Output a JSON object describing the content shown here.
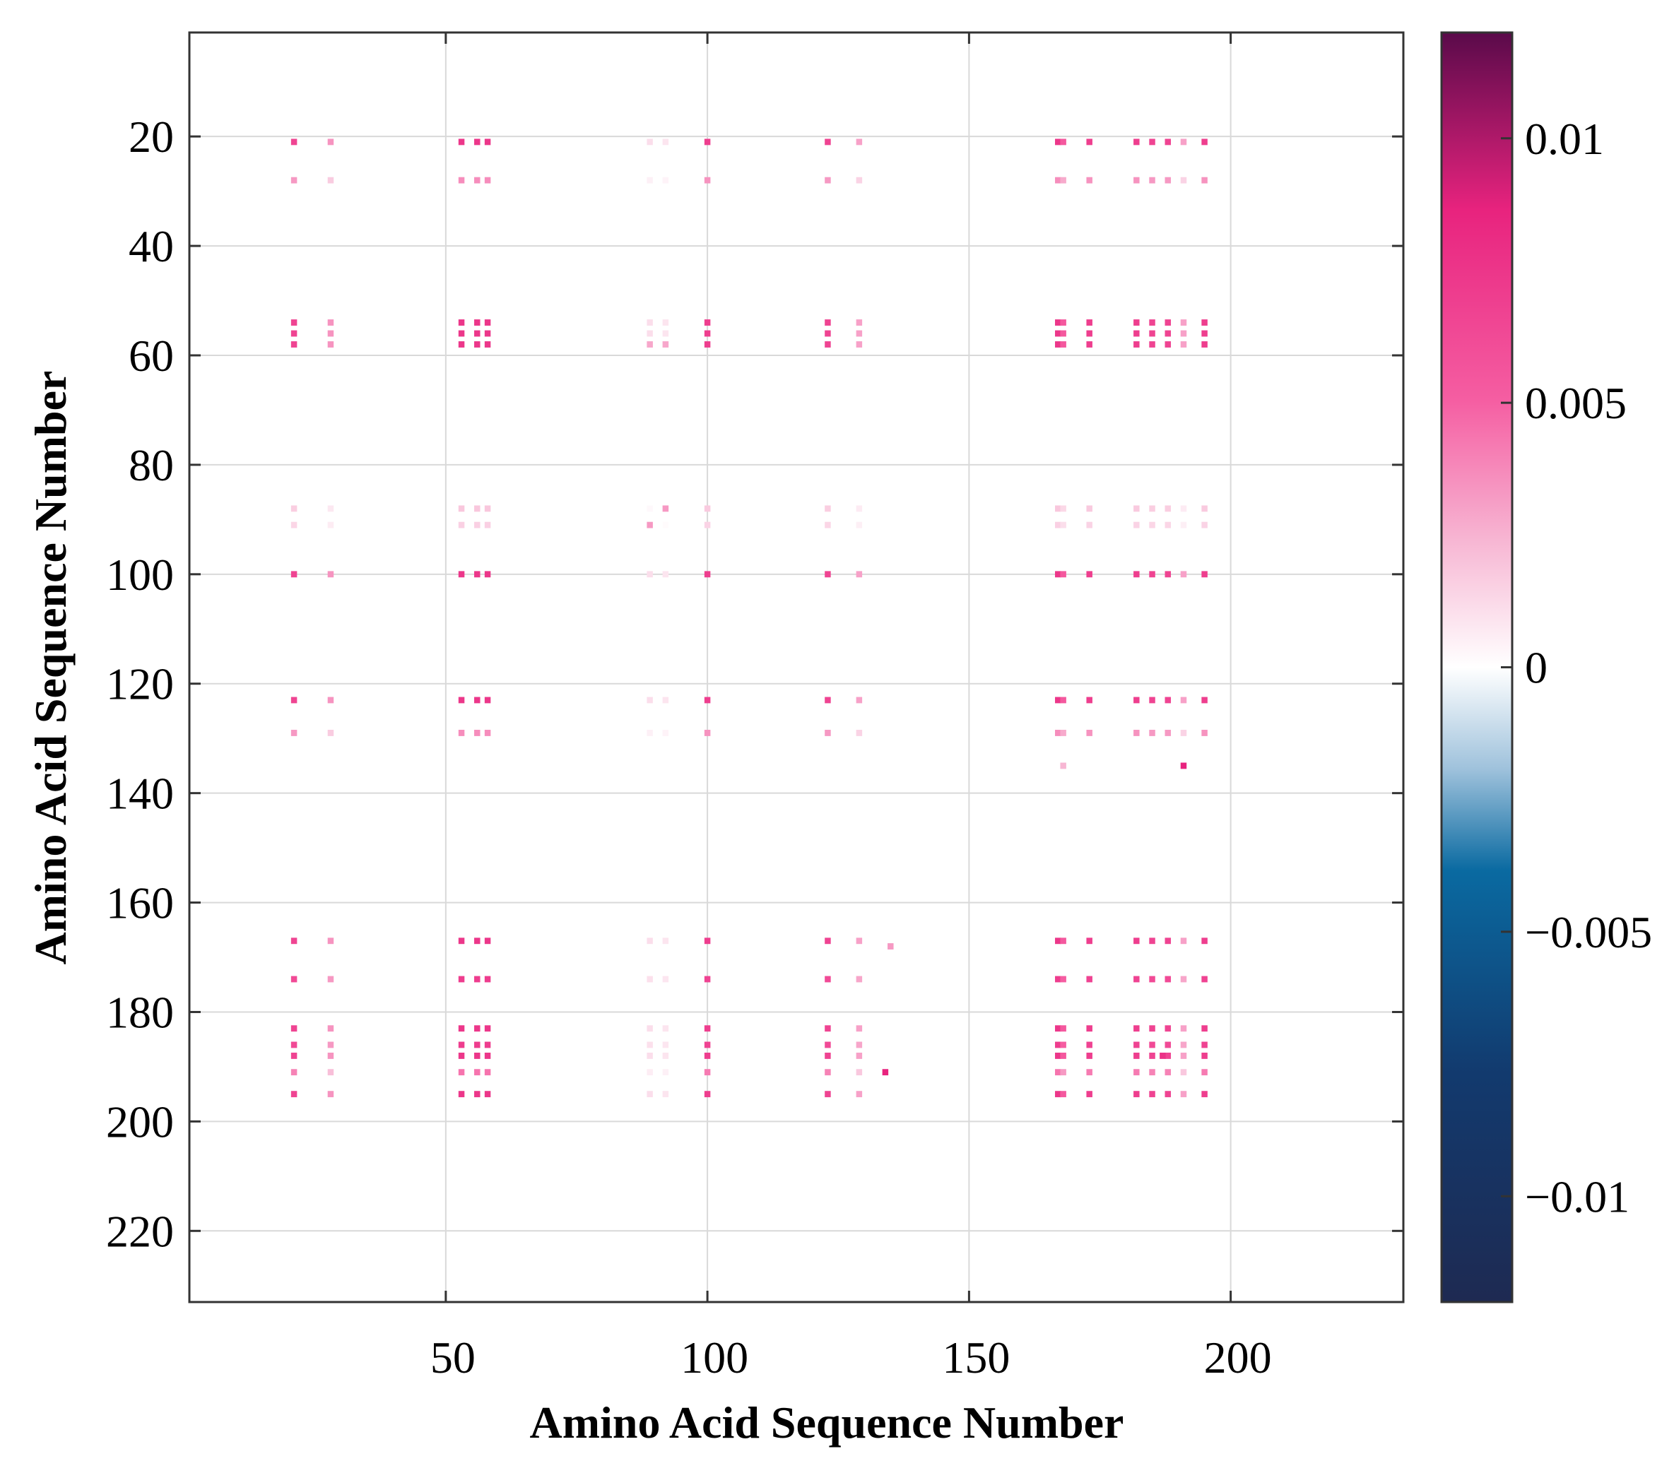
{
  "chart_data": {
    "type": "heatmap",
    "title": "",
    "xlabel": "Amino Acid Sequence Number",
    "ylabel": "Amino Acid Sequence Number",
    "xlim": [
      1,
      233
    ],
    "ylim": [
      1,
      233
    ],
    "y_reversed": true,
    "grid": true,
    "x_ticks": [
      50,
      100,
      150,
      200
    ],
    "x_tick_labels": [
      "50",
      "100",
      "150",
      "200"
    ],
    "y_ticks": [
      20,
      40,
      60,
      80,
      100,
      120,
      140,
      160,
      180,
      200,
      220
    ],
    "y_tick_labels": [
      "20",
      "40",
      "60",
      "80",
      "100",
      "120",
      "140",
      "160",
      "180",
      "200",
      "220"
    ],
    "colorbar": {
      "range": [
        -0.012,
        0.012
      ],
      "ticks": [
        0.01,
        0.005,
        0,
        -0.005,
        -0.01
      ],
      "tick_labels": [
        "0.01",
        "0.005",
        "0",
        "−0.005",
        "−0.01"
      ],
      "colors": {
        "top": "#5a0a4a",
        "strong_pink": "#e8237e",
        "pink": "#f55ea2",
        "light_pink": "#f7b6d3",
        "zero": "#ffffff",
        "light_blue": "#9fc2dc",
        "blue": "#0a6aa1",
        "dark_blue": "#123a6e",
        "bottom": "#1e2a52"
      }
    },
    "columns": [
      21,
      28,
      53,
      56,
      58,
      89,
      92,
      100,
      123,
      129,
      167,
      168,
      173,
      182,
      185,
      188,
      191,
      195
    ],
    "rows": [
      21,
      28,
      54,
      56,
      58,
      88,
      91,
      100,
      123,
      129,
      167,
      174,
      183,
      186,
      188,
      191,
      195
    ],
    "column_strength": [
      0.0075,
      0.0035,
      0.0085,
      0.0085,
      0.0085,
      0.001,
      0.0008,
      0.008,
      0.0075,
      0.003,
      0.0085,
      0.006,
      0.008,
      0.008,
      0.0075,
      0.0075,
      0.003,
      0.008
    ],
    "row_strength": [
      0.9,
      0.4,
      0.9,
      0.9,
      0.9,
      0.18,
      0.15,
      0.9,
      0.9,
      0.4,
      0.9,
      0.85,
      0.9,
      0.85,
      0.9,
      0.5,
      0.9
    ],
    "extra_points": [
      {
        "x": 135,
        "y": 168,
        "value": 0.003
      },
      {
        "x": 168,
        "y": 135,
        "value": 0.002
      },
      {
        "x": 191,
        "y": 135,
        "value": 0.009
      },
      {
        "x": 134,
        "y": 191,
        "value": 0.009
      },
      {
        "x": 89,
        "y": 91,
        "value": 0.003
      },
      {
        "x": 92,
        "y": 88,
        "value": 0.003
      },
      {
        "x": 89,
        "y": 58,
        "value": 0.0025
      },
      {
        "x": 92,
        "y": 58,
        "value": 0.0025
      },
      {
        "x": 187,
        "y": 188,
        "value": 0.008
      }
    ]
  }
}
